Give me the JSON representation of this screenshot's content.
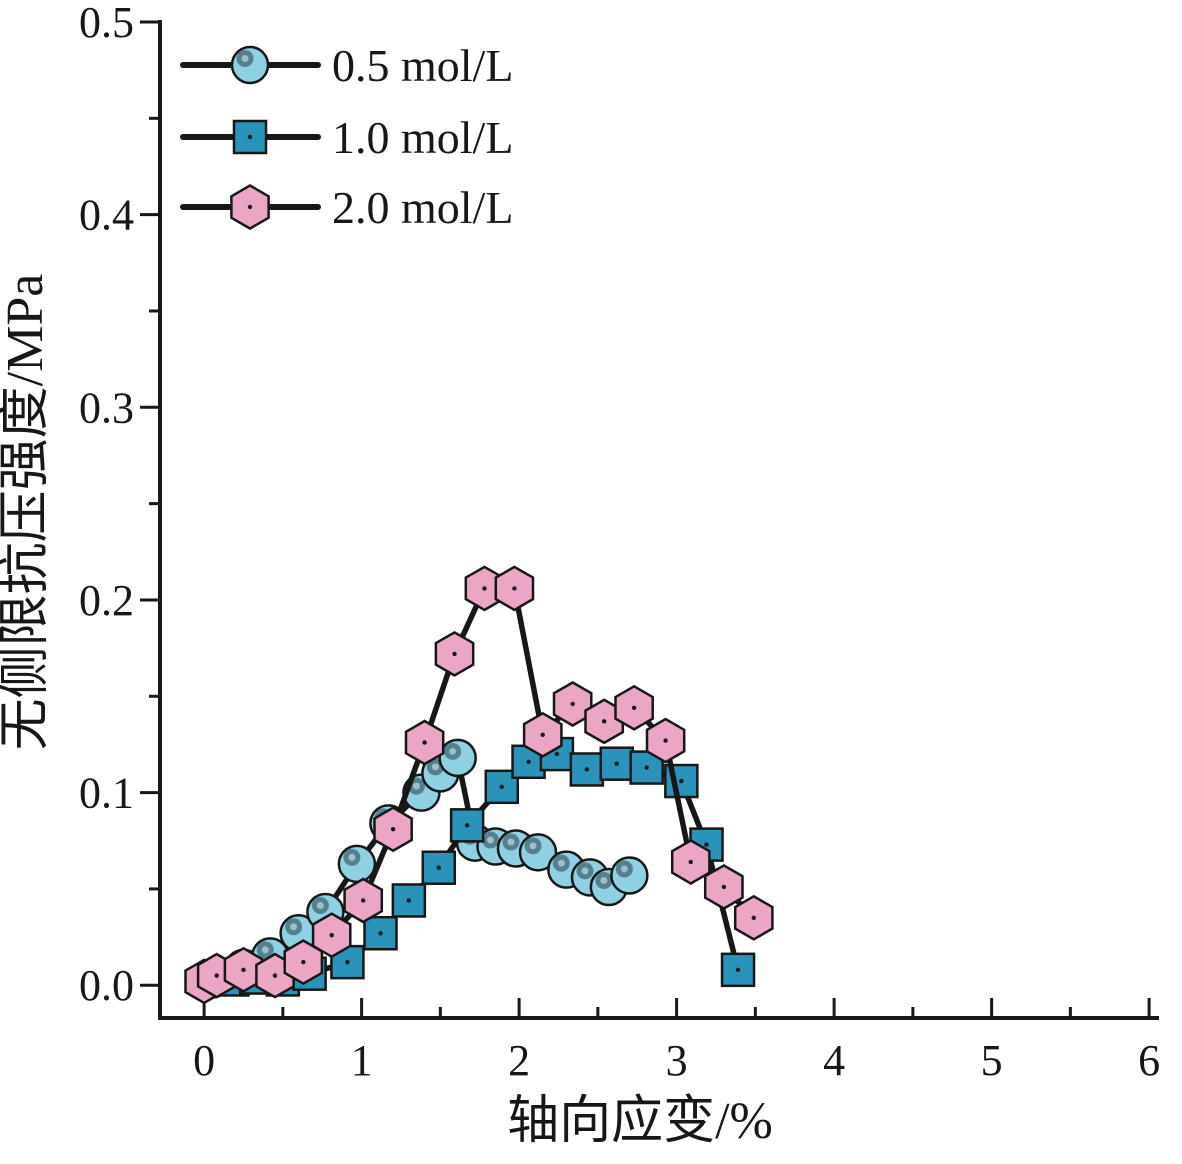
{
  "chart_data": {
    "type": "line",
    "title": "",
    "xlabel": "轴向应变/%",
    "ylabel": "无侧限抗压强度/MPa",
    "xlim": [
      -0.28,
      6.05
    ],
    "ylim": [
      -0.017,
      0.5
    ],
    "grid": false,
    "legend_position": "top-left-inside",
    "x_ticks_major": [
      0,
      1,
      2,
      3,
      4,
      5,
      6
    ],
    "x_tick_labels": [
      "0",
      "1",
      "2",
      "3",
      "4",
      "5",
      "6"
    ],
    "x_ticks_minor": [
      0.5,
      1.5,
      2.5,
      3.5,
      4.5,
      5.5
    ],
    "y_ticks_major": [
      0.0,
      0.1,
      0.2,
      0.3,
      0.4,
      0.5
    ],
    "y_tick_labels": [
      "0.0",
      "0.1",
      "0.2",
      "0.3",
      "0.4",
      "0.5"
    ],
    "y_ticks_minor": [
      0.05,
      0.15,
      0.25,
      0.35,
      0.45
    ],
    "ink_color": "#171717",
    "series": [
      {
        "name": "0.5 mol/L",
        "marker": "sphere",
        "fill": "#8fd1e3",
        "accent": "#54808f",
        "accent2": "#9dbfc9",
        "points": [
          [
            0.05,
            0.003
          ],
          [
            0.25,
            0.009
          ],
          [
            0.42,
            0.015
          ],
          [
            0.6,
            0.027
          ],
          [
            0.77,
            0.038
          ],
          [
            0.97,
            0.063
          ],
          [
            1.17,
            0.084
          ],
          [
            1.38,
            0.1
          ],
          [
            1.5,
            0.11
          ],
          [
            1.61,
            0.118
          ],
          [
            1.72,
            0.074
          ],
          [
            1.85,
            0.072
          ],
          [
            1.98,
            0.071
          ],
          [
            2.12,
            0.069
          ],
          [
            2.3,
            0.06
          ],
          [
            2.45,
            0.056
          ],
          [
            2.57,
            0.051
          ],
          [
            2.7,
            0.057
          ]
        ]
      },
      {
        "name": "1.0 mol/L",
        "marker": "square",
        "fill": "#2b93ba",
        "points": [
          [
            0.18,
            0.003
          ],
          [
            0.33,
            0.004
          ],
          [
            0.5,
            0.003
          ],
          [
            0.67,
            0.006
          ],
          [
            0.91,
            0.012
          ],
          [
            1.12,
            0.027
          ],
          [
            1.3,
            0.044
          ],
          [
            1.49,
            0.061
          ],
          [
            1.67,
            0.083
          ],
          [
            1.89,
            0.103
          ],
          [
            2.06,
            0.116
          ],
          [
            2.24,
            0.12
          ],
          [
            2.43,
            0.112
          ],
          [
            2.62,
            0.115
          ],
          [
            2.81,
            0.113
          ],
          [
            3.03,
            0.106
          ],
          [
            3.19,
            0.073
          ],
          [
            3.39,
            0.008
          ]
        ]
      },
      {
        "name": "2.0 mol/L",
        "marker": "hexagon",
        "fill": "#eba6c6",
        "points": [
          [
            0.0,
            0.002
          ],
          [
            0.08,
            0.005
          ],
          [
            0.25,
            0.008
          ],
          [
            0.45,
            0.005
          ],
          [
            0.63,
            0.012
          ],
          [
            0.81,
            0.026
          ],
          [
            1.01,
            0.044
          ],
          [
            1.2,
            0.081
          ],
          [
            1.4,
            0.126
          ],
          [
            1.59,
            0.172
          ],
          [
            1.78,
            0.206
          ],
          [
            1.97,
            0.206
          ],
          [
            2.15,
            0.13
          ],
          [
            2.34,
            0.146
          ],
          [
            2.54,
            0.137
          ],
          [
            2.73,
            0.144
          ],
          [
            2.93,
            0.127
          ],
          [
            3.09,
            0.064
          ],
          [
            3.3,
            0.051
          ],
          [
            3.49,
            0.035
          ]
        ]
      }
    ]
  }
}
